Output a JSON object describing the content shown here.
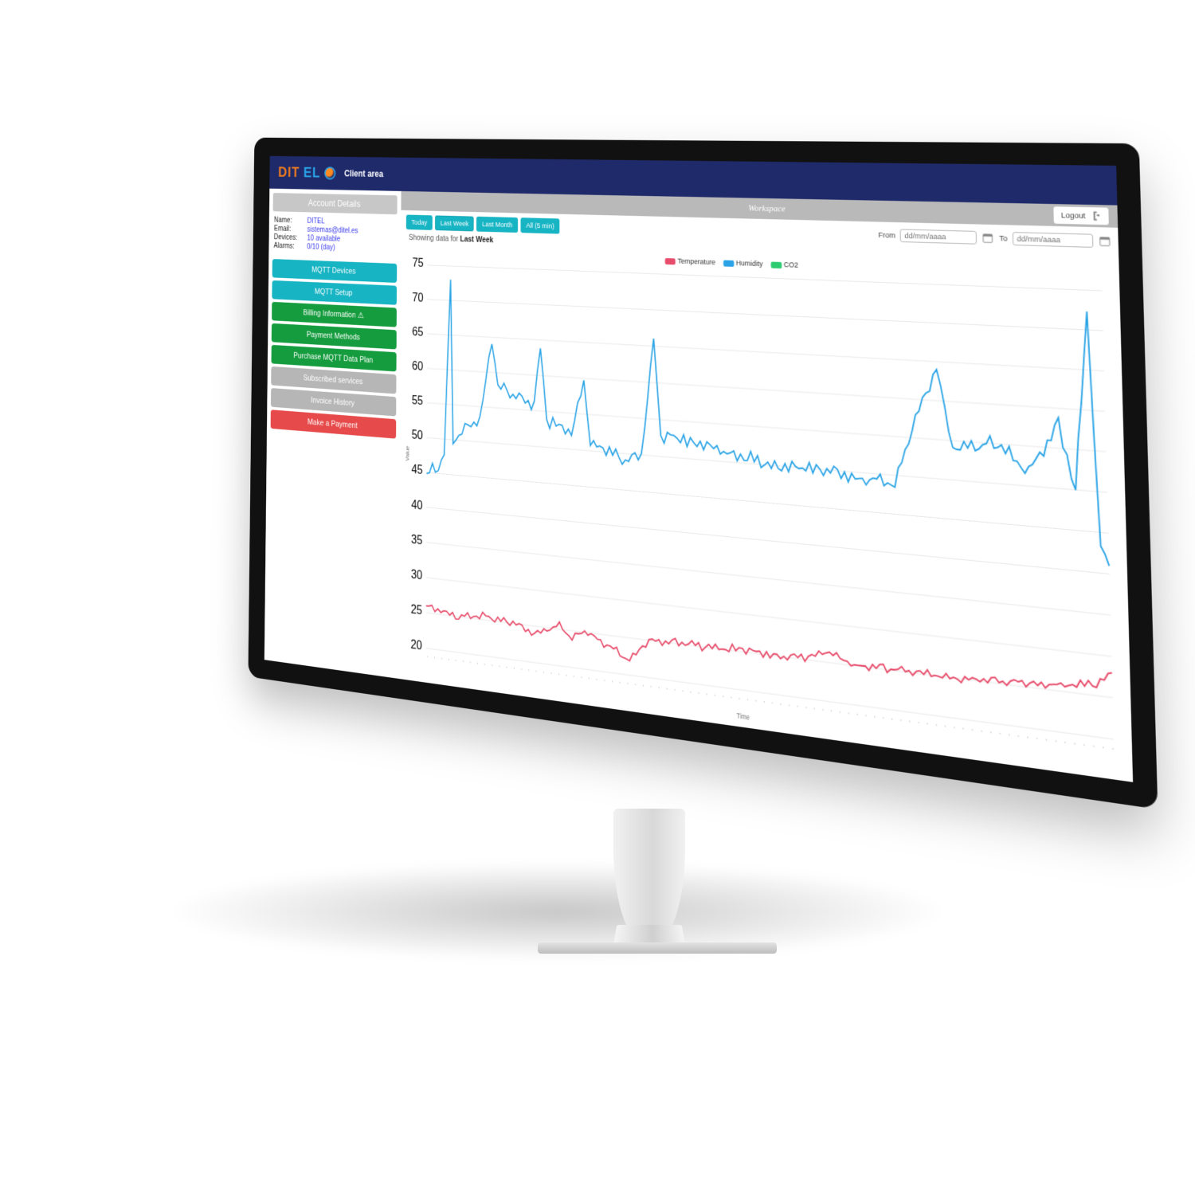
{
  "header": {
    "brand_1": "DIT",
    "brand_2": "EL",
    "title": "Client area"
  },
  "sidebar": {
    "panel_title": "Account Details",
    "details": [
      {
        "k": "Name:",
        "v": "DITEL"
      },
      {
        "k": "Email:",
        "v": "sistemas@ditel.es"
      },
      {
        "k": "Devices:",
        "v": "10 available"
      },
      {
        "k": "Alarms:",
        "v": "0/10 (day)"
      }
    ],
    "buttons": [
      {
        "label": "MQTT Devices",
        "cls": "nb-cyan"
      },
      {
        "label": "MQTT Setup",
        "cls": "nb-cyan"
      },
      {
        "label": "Billing Information ⚠",
        "cls": "nb-green"
      },
      {
        "label": "Payment Methods",
        "cls": "nb-green"
      },
      {
        "label": "Purchase MQTT Data Plan",
        "cls": "nb-green"
      },
      {
        "label": "Subscribed services",
        "cls": "nb-grey"
      },
      {
        "label": "Invoice History",
        "cls": "nb-grey"
      },
      {
        "label": "Make a Payment",
        "cls": "nb-red"
      }
    ]
  },
  "workspace": {
    "bar_title": "Workspace",
    "logout": "Logout",
    "range_buttons": [
      "Today",
      "Last Week",
      "Last Month",
      "All (5 min)"
    ],
    "active_range": 1,
    "showing_prefix": "Showing data for ",
    "showing_value": "Last Week",
    "date_from_label": "From",
    "date_to_label": "To",
    "date_from": "dd/mm/aaaa",
    "date_to": "dd/mm/aaaa"
  },
  "chart": {
    "type": "line",
    "background_color": "#ffffff",
    "grid_color": "#e9e9e9",
    "ylim": [
      20,
      75
    ],
    "ytick_step": 5,
    "xlabel": "Time",
    "ylabel": "Value",
    "legend_items": [
      {
        "label": "Temperature",
        "color": "#e74c6b"
      },
      {
        "label": "Humidity",
        "color": "#2aa4e6"
      },
      {
        "label": "CO2",
        "color": "#2ecc71"
      }
    ],
    "series": {
      "humidity": {
        "color": "#2aa4e6",
        "base": 50,
        "points": [
          [
            0,
            45
          ],
          [
            2,
            46
          ],
          [
            3,
            48
          ],
          [
            4,
            72
          ],
          [
            4.5,
            50
          ],
          [
            7,
            52
          ],
          [
            9,
            53
          ],
          [
            11,
            65
          ],
          [
            12,
            58
          ],
          [
            15,
            57
          ],
          [
            18,
            56
          ],
          [
            19,
            64
          ],
          [
            20,
            54
          ],
          [
            24,
            52
          ],
          [
            26,
            60
          ],
          [
            27,
            51
          ],
          [
            33,
            49
          ],
          [
            35,
            50
          ],
          [
            37,
            66
          ],
          [
            38,
            53
          ],
          [
            45,
            52
          ],
          [
            50,
            51
          ],
          [
            55,
            50
          ],
          [
            62,
            50
          ],
          [
            68,
            49
          ],
          [
            72,
            49
          ],
          [
            76,
            60
          ],
          [
            78,
            64
          ],
          [
            80,
            54
          ],
          [
            86,
            55
          ],
          [
            90,
            52
          ],
          [
            94,
            58
          ],
          [
            96,
            50
          ],
          [
            98,
            72
          ],
          [
            99,
            43
          ],
          [
            100,
            41
          ]
        ]
      },
      "temperature": {
        "color": "#e74c6b",
        "base": 25,
        "points": [
          [
            0,
            26
          ],
          [
            5,
            25
          ],
          [
            10,
            25.5
          ],
          [
            15,
            25
          ],
          [
            18,
            24
          ],
          [
            22,
            25.5
          ],
          [
            24,
            24
          ],
          [
            26,
            25.2
          ],
          [
            30,
            23.5
          ],
          [
            33,
            22
          ],
          [
            36,
            25
          ],
          [
            40,
            25.2
          ],
          [
            45,
            25
          ],
          [
            50,
            25.3
          ],
          [
            55,
            25
          ],
          [
            60,
            25.4
          ],
          [
            62,
            26.5
          ],
          [
            66,
            25
          ],
          [
            70,
            25.2
          ],
          [
            75,
            25.1
          ],
          [
            80,
            25
          ],
          [
            85,
            25.3
          ],
          [
            90,
            25.5
          ],
          [
            94,
            25.8
          ],
          [
            98,
            26.5
          ],
          [
            100,
            28
          ]
        ]
      }
    }
  },
  "colors": {
    "topbar": "#1f2a6b",
    "cyan": "#17b4c4",
    "green": "#159c3e",
    "grey": "#b6b6b6",
    "red": "#e64a4a",
    "humidity": "#2aa4e6",
    "temperature": "#e74c6b",
    "co2": "#2ecc71"
  }
}
